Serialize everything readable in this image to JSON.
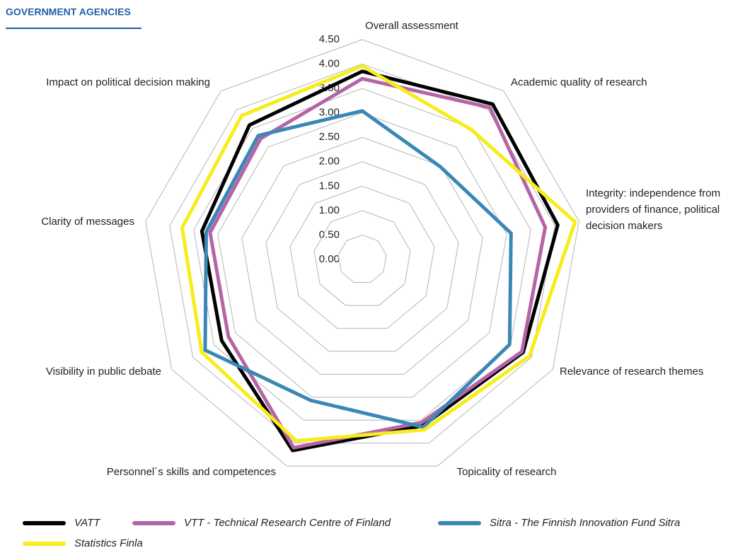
{
  "chart_data": {
    "type": "radar",
    "title": "GOVERNMENT AGENCIES",
    "categories": [
      "Overall assessment",
      "Academic quality of research",
      "Integrity: independence from providers of finance, political decision makers",
      "Relevance of research themes",
      "Topicality of research",
      "Personnel´s skills and competences",
      "Visibility in public debate",
      "Clarity of messages",
      "Impact on political decision making"
    ],
    "ylim": [
      0,
      4.5
    ],
    "yticks": [
      {
        "value": 0,
        "label": "0.00"
      },
      {
        "value": 0.5,
        "label": "0.50"
      },
      {
        "value": 1,
        "label": "1.00"
      },
      {
        "value": 1.5,
        "label": "1.50"
      },
      {
        "value": 2,
        "label": "2.00"
      },
      {
        "value": 2.5,
        "label": "2.50"
      },
      {
        "value": 3,
        "label": "3.00"
      },
      {
        "value": 3.5,
        "label": "3.50"
      },
      {
        "value": 4,
        "label": "4.00"
      },
      {
        "value": 4.5,
        "label": "4.50"
      }
    ],
    "grid": true,
    "series": [
      {
        "name": "VATT",
        "color": "#000000",
        "values": [
          3.85,
          4.15,
          4.06,
          3.8,
          3.62,
          4.16,
          3.32,
          3.33,
          3.59
        ]
      },
      {
        "name": "VTT - Technical Research Centre of Finland",
        "color": "#b565a7",
        "values": [
          3.7,
          4.06,
          3.8,
          3.77,
          3.55,
          4.1,
          3.16,
          3.16,
          3.23
        ]
      },
      {
        "name": "Sitra - The Finnish Innovation Fund Sitra",
        "color": "#3a87b5",
        "values": [
          3.04,
          2.48,
          3.09,
          3.48,
          3.65,
          3.07,
          3.71,
          3.24,
          3.31
        ]
      },
      {
        "name": "Statistics Finla",
        "color": "#f7ec1c",
        "values": [
          3.96,
          3.47,
          4.42,
          3.95,
          3.71,
          3.95,
          3.79,
          3.74,
          3.84
        ]
      }
    ]
  }
}
